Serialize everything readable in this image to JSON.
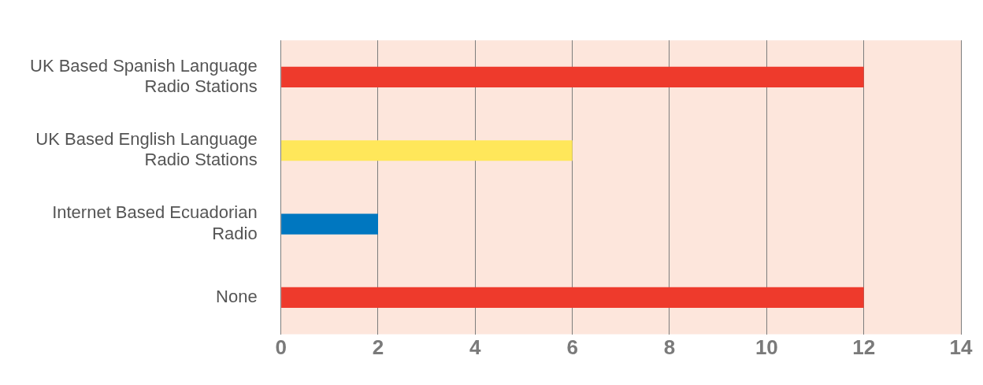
{
  "chart_data": {
    "type": "bar",
    "orientation": "horizontal",
    "categories": [
      "UK Based Spanish Language Radio Stations",
      "UK Based English Language Radio Stations",
      "Internet Based Ecuadorian Radio",
      "None"
    ],
    "values": [
      12,
      6,
      2,
      12
    ],
    "colors": [
      "#ee3a2c",
      "#ffe75a",
      "#0077c0",
      "#ee3a2c"
    ],
    "xlim": [
      0,
      14
    ],
    "xticks": [
      0,
      2,
      4,
      6,
      8,
      10,
      12,
      14
    ],
    "grid": "x",
    "legend": false
  }
}
